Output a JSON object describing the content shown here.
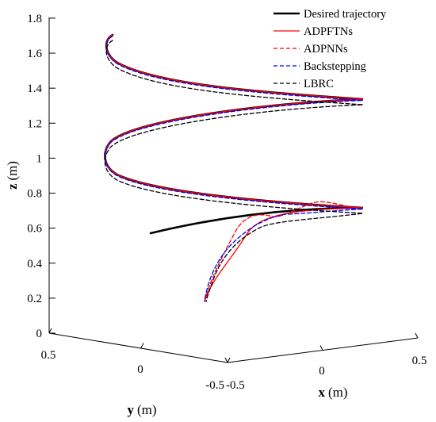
{
  "chart_data": {
    "type": "line",
    "projection": "3d",
    "title": "",
    "xlabel_var": "x",
    "xlabel_unit": "(m)",
    "ylabel_var": "y",
    "ylabel_unit": "(m)",
    "zlabel_var": "z",
    "zlabel_unit": "(m)",
    "xlim": [
      -0.5,
      0.5
    ],
    "ylim": [
      -0.5,
      0.5
    ],
    "zlim": [
      0,
      1.8
    ],
    "x_ticks": [
      "-0.5",
      "0",
      "0.5"
    ],
    "y_ticks": [
      "0.5",
      "0",
      "-0.5"
    ],
    "z_ticks": [
      "0",
      "0.2",
      "0.4",
      "0.6",
      "0.8",
      "1",
      "1.2",
      "1.4",
      "1.6",
      "1.8"
    ],
    "grid": false,
    "legend_position": "top-right",
    "series": [
      {
        "name": "Desired trajectory",
        "color": "#000000",
        "dash": "solid",
        "width": 2.6
      },
      {
        "name": "ADPFTNs",
        "color": "#ff0000",
        "dash": "solid",
        "width": 1.3
      },
      {
        "name": "ADPNNs",
        "color": "#ff0000",
        "dash": "dashed",
        "width": 1.3
      },
      {
        "name": "Backstepping",
        "color": "#0000ff",
        "dash": "dashed",
        "width": 1.3
      },
      {
        "name": "LBRC",
        "color": "#000000",
        "dash": "dashed",
        "width": 1.3
      }
    ]
  }
}
